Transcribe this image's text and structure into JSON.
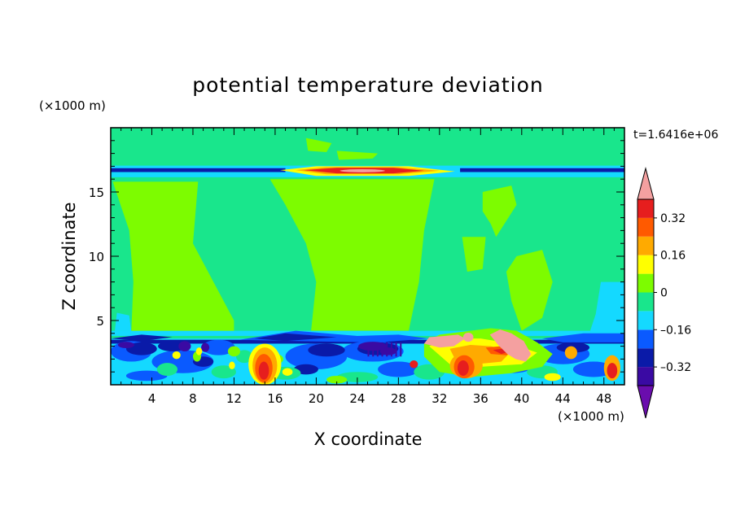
{
  "chart_data": {
    "type": "heatmap",
    "title": "potential temperature deviation",
    "xlabel": "X coordinate",
    "ylabel": "Z coordinate",
    "x_unit": "(×1000 m)",
    "y_unit": "(×1000 m)",
    "time_label": "t=1.6416e+06",
    "xlim": [
      0,
      50
    ],
    "ylim": [
      0,
      20
    ],
    "x_ticks": [
      "4",
      "8",
      "12",
      "16",
      "20",
      "24",
      "28",
      "32",
      "36",
      "40",
      "44",
      "48"
    ],
    "y_ticks": [
      "5",
      "10",
      "15"
    ],
    "colorbar": {
      "levels": [
        -0.4,
        -0.32,
        -0.24,
        -0.16,
        -0.08,
        0,
        0.08,
        0.16,
        0.24,
        0.32,
        0.4
      ],
      "tick_labels": [
        "0.32",
        "0.16",
        "0",
        "–0.16",
        "–0.32"
      ],
      "colors": [
        "#6a0dad",
        "#3a0aa3",
        "#0a1aa8",
        "#0a5aff",
        "#14d9ff",
        "#19e68c",
        "#7dfc00",
        "#ffff00",
        "#ffaa00",
        "#ff5a00",
        "#e61e1e",
        "#f4a0a0"
      ]
    }
  }
}
